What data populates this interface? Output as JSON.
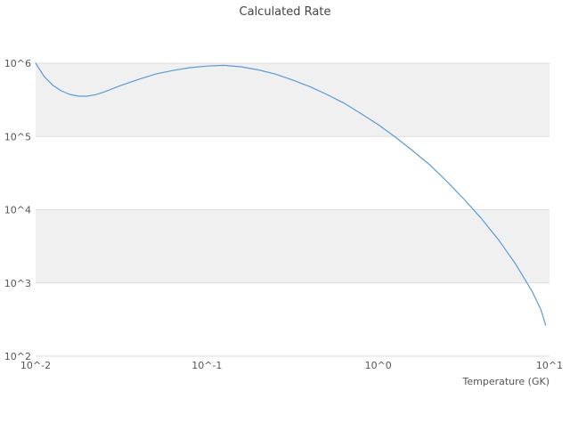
{
  "colors": {
    "background": "#ffffff",
    "band": "#f0f0f0",
    "gridline": "#dedede",
    "line": "#5b9bd5",
    "title_text": "#444444",
    "tick_text": "#555555"
  },
  "chart_data": {
    "type": "line",
    "title": "Calculated Rate",
    "xlabel": "Temperature (GK)",
    "ylabel": "",
    "xscale": "log",
    "yscale": "log",
    "xlim": [
      0.01,
      10
    ],
    "ylim": [
      100,
      1000000
    ],
    "grid": "horizontal-decades",
    "legend": "none",
    "bands": [
      [
        100000.0,
        1000000.0
      ],
      [
        1000.0,
        10000.0
      ]
    ],
    "xticks": [
      {
        "value": 0.01,
        "label": "10^-2"
      },
      {
        "value": 0.1,
        "label": "10^-1"
      },
      {
        "value": 1,
        "label": "10^0"
      },
      {
        "value": 10,
        "label": "10^1"
      }
    ],
    "yticks": [
      {
        "value": 100.0,
        "label": "10^2"
      },
      {
        "value": 1000.0,
        "label": "10^3"
      },
      {
        "value": 10000.0,
        "label": "10^4"
      },
      {
        "value": 100000.0,
        "label": "10^5"
      },
      {
        "value": 1000000.0,
        "label": "10^6"
      }
    ],
    "series": [
      {
        "name": "calculated-rate",
        "color": "#5b9bd5",
        "points": [
          [
            0.01,
            1000000.0
          ],
          [
            0.0112,
            660000.0
          ],
          [
            0.0126,
            500000.0
          ],
          [
            0.0141,
            420000.0
          ],
          [
            0.0158,
            375000.0
          ],
          [
            0.0178,
            355000.0
          ],
          [
            0.02,
            355000.0
          ],
          [
            0.0224,
            372000.0
          ],
          [
            0.0251,
            405000.0
          ],
          [
            0.0316,
            500000.0
          ],
          [
            0.0398,
            600000.0
          ],
          [
            0.0501,
            710000.0
          ],
          [
            0.0631,
            795000.0
          ],
          [
            0.0794,
            870000.0
          ],
          [
            0.1,
            915000.0
          ],
          [
            0.126,
            935000.0
          ],
          [
            0.158,
            895000.0
          ],
          [
            0.2,
            810000.0
          ],
          [
            0.251,
            710000.0
          ],
          [
            0.316,
            590000.0
          ],
          [
            0.398,
            480000.0
          ],
          [
            0.501,
            375000.0
          ],
          [
            0.631,
            285000.0
          ],
          [
            0.794,
            205000.0
          ],
          [
            1.0,
            145000.0
          ],
          [
            1.26,
            98000.0
          ],
          [
            1.58,
            64500.0
          ],
          [
            2.0,
            41000.0
          ],
          [
            2.51,
            24500.0
          ],
          [
            3.16,
            14000.0
          ],
          [
            3.98,
            7700.0
          ],
          [
            5.01,
            3950.0
          ],
          [
            6.31,
            1850.0
          ],
          [
            7.94,
            760.0
          ],
          [
            8.91,
            430.0
          ],
          [
            9.5,
            265.0
          ]
        ]
      }
    ]
  }
}
